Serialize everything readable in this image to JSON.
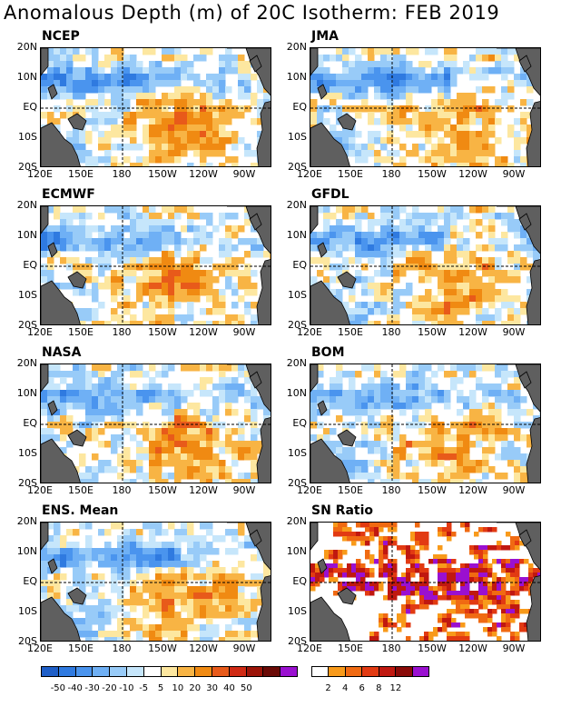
{
  "title": "Anomalous Depth (m) of 20C Isotherm: FEB 2019",
  "axes": {
    "y_ticks": [
      "20N",
      "10N",
      "EQ",
      "10S",
      "20S"
    ],
    "x_ticks": [
      "120E",
      "150E",
      "180",
      "150W",
      "120W",
      "90W"
    ]
  },
  "panels": [
    {
      "name": "NCEP"
    },
    {
      "name": "JMA"
    },
    {
      "name": "ECMWF"
    },
    {
      "name": "GFDL"
    },
    {
      "name": "NASA"
    },
    {
      "name": "BOM"
    },
    {
      "name": "ENS. Mean"
    },
    {
      "name": "SN Ratio"
    }
  ],
  "colorbar_depth": {
    "labels": [
      "-50",
      "-40",
      "-30",
      "-20",
      "-10",
      "-5",
      "5",
      "10",
      "20",
      "30",
      "40",
      "50"
    ],
    "colors": [
      "#1f5fc8",
      "#2f7ae0",
      "#4a94ee",
      "#6fb0f5",
      "#98cbf8",
      "#c6e6fb",
      "#ffffff",
      "#fde7a0",
      "#f8b444",
      "#f08a12",
      "#e85a1a",
      "#d02a14",
      "#9c1408",
      "#6a0a06",
      "#9a10d0"
    ]
  },
  "colorbar_sn": {
    "labels": [
      "2",
      "4",
      "6",
      "8",
      "12"
    ],
    "colors": [
      "#ffffff",
      "#f89a1a",
      "#f06a12",
      "#e23a12",
      "#c01810",
      "#8a0a08",
      "#9a10d0"
    ]
  },
  "chart_data": [
    {
      "type": "heatmap",
      "title": "NCEP",
      "x": [
        "120E",
        "150E",
        "180",
        "150W",
        "120W",
        "90W"
      ],
      "y": [
        "20N",
        "10N",
        "EQ",
        "10S",
        "20S"
      ],
      "units": "m"
    },
    {
      "type": "heatmap",
      "title": "JMA",
      "x": [
        "120E",
        "150E",
        "180",
        "150W",
        "120W",
        "90W"
      ],
      "y": [
        "20N",
        "10N",
        "EQ",
        "10S",
        "20S"
      ],
      "units": "m"
    },
    {
      "type": "heatmap",
      "title": "ECMWF",
      "x": [
        "120E",
        "150E",
        "180",
        "150W",
        "120W",
        "90W"
      ],
      "y": [
        "20N",
        "10N",
        "EQ",
        "10S",
        "20S"
      ],
      "units": "m"
    },
    {
      "type": "heatmap",
      "title": "GFDL",
      "x": [
        "120E",
        "150E",
        "180",
        "150W",
        "120W",
        "90W"
      ],
      "y": [
        "20N",
        "10N",
        "EQ",
        "10S",
        "20S"
      ],
      "units": "m"
    },
    {
      "type": "heatmap",
      "title": "NASA",
      "x": [
        "120E",
        "150E",
        "180",
        "150W",
        "120W",
        "90W"
      ],
      "y": [
        "20N",
        "10N",
        "EQ",
        "10S",
        "20S"
      ],
      "units": "m"
    },
    {
      "type": "heatmap",
      "title": "BOM",
      "x": [
        "120E",
        "150E",
        "180",
        "150W",
        "120W",
        "90W"
      ],
      "y": [
        "20N",
        "10N",
        "EQ",
        "10S",
        "20S"
      ],
      "units": "m"
    },
    {
      "type": "heatmap",
      "title": "ENS. Mean",
      "x": [
        "120E",
        "150E",
        "180",
        "150W",
        "120W",
        "90W"
      ],
      "y": [
        "20N",
        "10N",
        "EQ",
        "10S",
        "20S"
      ],
      "units": "m"
    },
    {
      "type": "heatmap",
      "title": "SN Ratio",
      "x": [
        "120E",
        "150E",
        "180",
        "150W",
        "120W",
        "90W"
      ],
      "y": [
        "20N",
        "10N",
        "EQ",
        "10S",
        "20S"
      ]
    }
  ]
}
